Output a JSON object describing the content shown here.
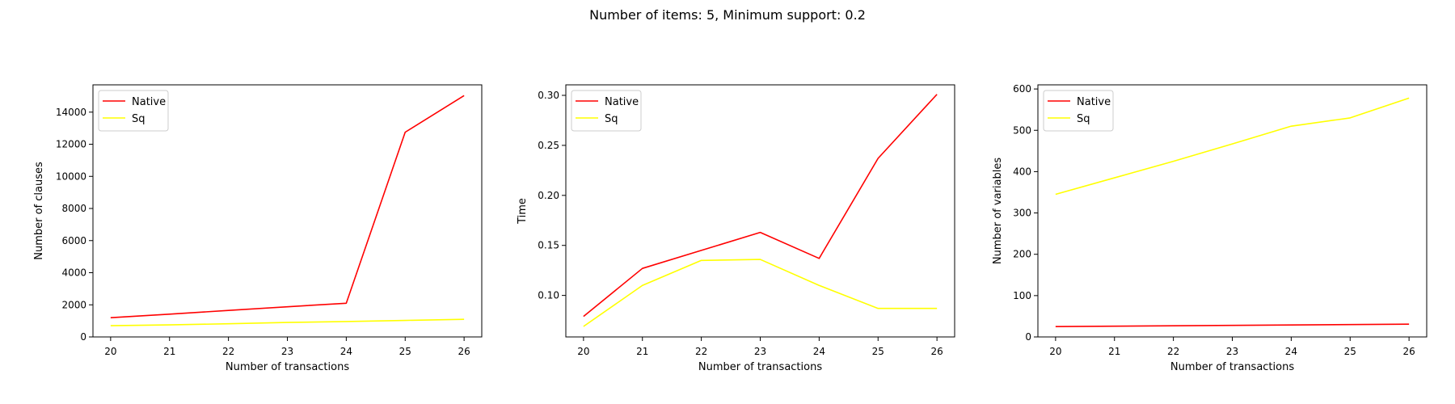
{
  "figure": {
    "suptitle": "Number of items: 5, Minimum support: 0.2",
    "colors": {
      "Native": "#ff0000",
      "Sq": "#ffff00",
      "axis": "#000000",
      "legend_border": "#cccccc"
    }
  },
  "chart_data": [
    {
      "type": "line",
      "xlabel": "Number of transactions",
      "ylabel": "Number of clauses",
      "x": [
        20,
        21,
        22,
        23,
        24,
        25,
        26
      ],
      "xticks": [
        "20",
        "21",
        "22",
        "23",
        "24",
        "25",
        "26"
      ],
      "xlim": [
        19.7,
        26.3
      ],
      "ylim": [
        0,
        15700
      ],
      "yticks": [
        0,
        2000,
        4000,
        6000,
        8000,
        10000,
        12000,
        14000
      ],
      "ytick_labels": [
        "0",
        "2000",
        "4000",
        "6000",
        "8000",
        "10000",
        "12000",
        "14000"
      ],
      "legend": "upper left",
      "grid": false,
      "series": [
        {
          "name": "Native",
          "color": "#ff0000",
          "values": [
            1200,
            1420,
            1650,
            1880,
            2100,
            12750,
            15030
          ]
        },
        {
          "name": "Sq",
          "color": "#ffff00",
          "values": [
            700,
            750,
            820,
            900,
            960,
            1030,
            1100
          ]
        }
      ]
    },
    {
      "type": "line",
      "xlabel": "Number of transactions",
      "ylabel": "Time",
      "x": [
        20,
        21,
        22,
        23,
        24,
        25,
        26
      ],
      "xticks": [
        "20",
        "21",
        "22",
        "23",
        "24",
        "25",
        "26"
      ],
      "xlim": [
        19.7,
        26.3
      ],
      "ylim": [
        0.0585,
        0.3105
      ],
      "yticks": [
        0.1,
        0.15,
        0.2,
        0.25,
        0.3
      ],
      "ytick_labels": [
        "0.10",
        "0.15",
        "0.20",
        "0.25",
        "0.30"
      ],
      "legend": "upper left",
      "grid": false,
      "series": [
        {
          "name": "Native",
          "color": "#ff0000",
          "values": [
            0.079,
            0.127,
            0.145,
            0.163,
            0.137,
            0.237,
            0.301
          ]
        },
        {
          "name": "Sq",
          "color": "#ffff00",
          "values": [
            0.069,
            0.11,
            0.135,
            0.136,
            0.11,
            0.087,
            0.087
          ]
        }
      ]
    },
    {
      "type": "line",
      "xlabel": "Number of transactions",
      "ylabel": "Number of variables",
      "x": [
        20,
        21,
        22,
        23,
        24,
        25,
        26
      ],
      "xticks": [
        "20",
        "21",
        "22",
        "23",
        "24",
        "25",
        "26"
      ],
      "xlim": [
        19.7,
        26.3
      ],
      "ylim": [
        0,
        610
      ],
      "yticks": [
        0,
        100,
        200,
        300,
        400,
        500,
        600
      ],
      "ytick_labels": [
        "0",
        "100",
        "200",
        "300",
        "400",
        "500",
        "600"
      ],
      "legend": "upper left",
      "grid": false,
      "series": [
        {
          "name": "Native",
          "color": "#ff0000",
          "values": [
            25,
            26,
            27,
            28,
            29,
            30,
            31
          ]
        },
        {
          "name": "Sq",
          "color": "#ffff00",
          "values": [
            345,
            385,
            425,
            467,
            510,
            530,
            578
          ]
        }
      ]
    }
  ]
}
